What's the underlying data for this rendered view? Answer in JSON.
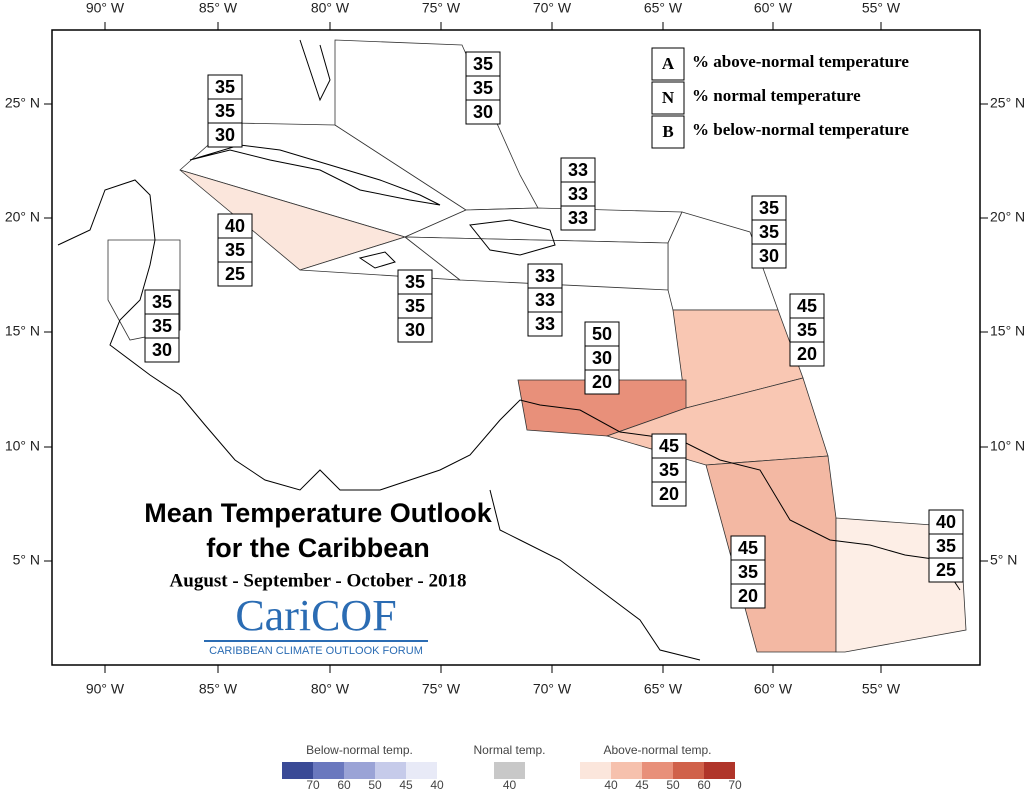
{
  "lon_labels": [
    "90° W",
    "85° W",
    "80° W",
    "75° W",
    "70° W",
    "65° W",
    "60° W",
    "55° W"
  ],
  "lat_labels": [
    "25° N",
    "20° N",
    "15° N",
    "10° N",
    "5° N"
  ],
  "key": [
    {
      "letter": "A",
      "text": "% above-normal temperature"
    },
    {
      "letter": "N",
      "text": "% normal temperature"
    },
    {
      "letter": "B",
      "text": "% below-normal temperature"
    }
  ],
  "title": "Mean Temperature Outlook",
  "title2": "for the Caribbean",
  "period": "August - September - October - 2018",
  "logo": {
    "name": "CariCOF",
    "subtitle": "CARIBBEAN CLIMATE OUTLOOK FORUM"
  },
  "regions": [
    {
      "values": [
        "35",
        "35",
        "30"
      ],
      "color": "#ffffff"
    },
    {
      "values": [
        "35",
        "35",
        "30"
      ],
      "color": "#ffffff"
    },
    {
      "values": [
        "33",
        "33",
        "33"
      ],
      "color": "#ffffff"
    },
    {
      "values": [
        "40",
        "35",
        "25"
      ],
      "color": "#fbe6dc"
    },
    {
      "values": [
        "35",
        "35",
        "30"
      ],
      "color": "#ffffff"
    },
    {
      "values": [
        "35",
        "35",
        "30"
      ],
      "color": "#ffffff"
    },
    {
      "values": [
        "35",
        "35",
        "30"
      ],
      "color": "#ffffff"
    },
    {
      "values": [
        "33",
        "33",
        "33"
      ],
      "color": "#ffffff"
    },
    {
      "values": [
        "45",
        "35",
        "20"
      ],
      "color": "#f9c7b3"
    },
    {
      "values": [
        "50",
        "30",
        "20"
      ],
      "color": "#e8907a"
    },
    {
      "values": [
        "45",
        "35",
        "20"
      ],
      "color": "#f9c7b3"
    },
    {
      "values": [
        "45",
        "35",
        "20"
      ],
      "color": "#f3b8a3"
    },
    {
      "values": [
        "40",
        "35",
        "25"
      ],
      "color": "#fdeee6"
    }
  ],
  "colorbar": [
    {
      "title": "Below-normal temp.",
      "labels": [
        "70",
        "60",
        "50",
        "45",
        "40"
      ],
      "colors": [
        "#3a4a96",
        "#6a78be",
        "#9aa3d6",
        "#c6cbea",
        "#e8eaf7"
      ]
    },
    {
      "title": "Normal temp.",
      "labels": [
        "40"
      ],
      "colors": [
        "#c8c8c8"
      ]
    },
    {
      "title": "Above-normal temp.",
      "labels": [
        "40",
        "45",
        "50",
        "60",
        "70"
      ],
      "colors": [
        "#fbe6dc",
        "#f6c1ad",
        "#e8907a",
        "#d0614a",
        "#b0352a"
      ]
    }
  ]
}
